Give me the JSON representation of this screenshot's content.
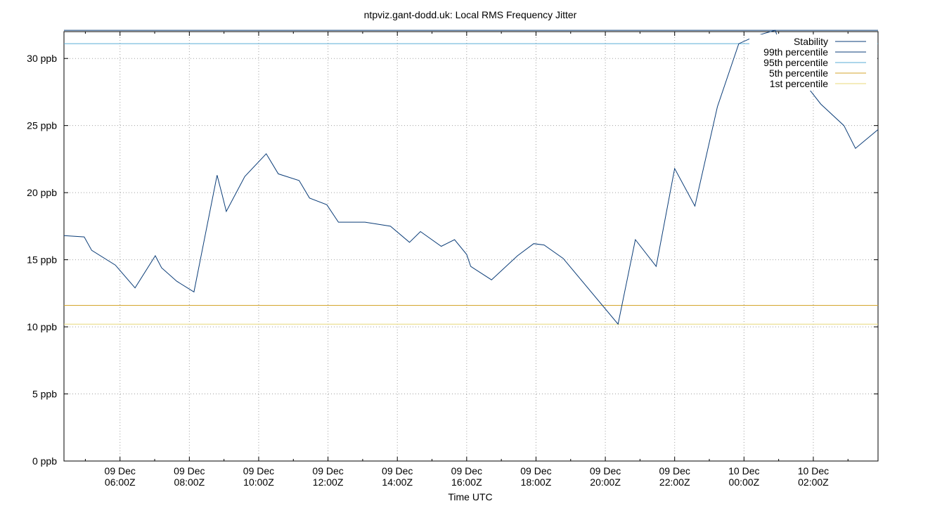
{
  "chart_data": {
    "type": "line",
    "title": "ntpviz.gant-dodd.uk: Local RMS Frequency Jitter",
    "xlabel": "Time UTC",
    "ylabel": "",
    "ylim": [
      0,
      32
    ],
    "xlim": [
      "2024-12-09T04:23Z",
      "2024-12-10T03:52Z"
    ],
    "grid": true,
    "legend_position": "top-right",
    "yticks": [
      {
        "value": 0,
        "label": "0 ppb"
      },
      {
        "value": 5,
        "label": "5 ppb"
      },
      {
        "value": 10,
        "label": "10 ppb"
      },
      {
        "value": 15,
        "label": "15 ppb"
      },
      {
        "value": 20,
        "label": "20 ppb"
      },
      {
        "value": 25,
        "label": "25 ppb"
      },
      {
        "value": 30,
        "label": "30 ppb"
      }
    ],
    "xticks": [
      {
        "value": "2024-12-09T06:00Z",
        "line1": "09 Dec",
        "line2": "06:00Z"
      },
      {
        "value": "2024-12-09T08:00Z",
        "line1": "09 Dec",
        "line2": "08:00Z"
      },
      {
        "value": "2024-12-09T10:00Z",
        "line1": "09 Dec",
        "line2": "10:00Z"
      },
      {
        "value": "2024-12-09T12:00Z",
        "line1": "09 Dec",
        "line2": "12:00Z"
      },
      {
        "value": "2024-12-09T14:00Z",
        "line1": "09 Dec",
        "line2": "14:00Z"
      },
      {
        "value": "2024-12-09T16:00Z",
        "line1": "09 Dec",
        "line2": "16:00Z"
      },
      {
        "value": "2024-12-09T18:00Z",
        "line1": "09 Dec",
        "line2": "18:00Z"
      },
      {
        "value": "2024-12-09T20:00Z",
        "line1": "09 Dec",
        "line2": "20:00Z"
      },
      {
        "value": "2024-12-09T22:00Z",
        "line1": "09 Dec",
        "line2": "22:00Z"
      },
      {
        "value": "2024-12-10T00:00Z",
        "line1": "10 Dec",
        "line2": "00:00Z"
      },
      {
        "value": "2024-12-10T02:00Z",
        "line1": "10 Dec",
        "line2": "02:00Z"
      }
    ],
    "minor_xticks": [
      "2024-12-09T05:00Z",
      "2024-12-09T07:00Z",
      "2024-12-09T09:00Z",
      "2024-12-09T11:00Z",
      "2024-12-09T13:00Z",
      "2024-12-09T15:00Z",
      "2024-12-09T17:00Z",
      "2024-12-09T19:00Z",
      "2024-12-09T21:00Z",
      "2024-12-09T23:00Z",
      "2024-12-10T01:00Z",
      "2024-12-10T03:00Z"
    ],
    "series": [
      {
        "name": "Stability",
        "color": "#0b3d78",
        "x": [
          "2024-12-09T04:23Z",
          "2024-12-09T04:58Z",
          "2024-12-09T05:11Z",
          "2024-12-09T05:52Z",
          "2024-12-09T06:26Z",
          "2024-12-09T07:01Z",
          "2024-12-09T07:12Z",
          "2024-12-09T07:38Z",
          "2024-12-09T08:08Z",
          "2024-12-09T08:48Z",
          "2024-12-09T08:57Z",
          "2024-12-09T09:04Z",
          "2024-12-09T09:36Z",
          "2024-12-09T10:13Z",
          "2024-12-09T10:34Z",
          "2024-12-09T11:10Z",
          "2024-12-09T11:28Z",
          "2024-12-09T11:58Z",
          "2024-12-09T12:18Z",
          "2024-12-09T13:04Z",
          "2024-12-09T13:48Z",
          "2024-12-09T14:21Z",
          "2024-12-09T14:40Z",
          "2024-12-09T15:16Z",
          "2024-12-09T15:39Z",
          "2024-12-09T16:00Z",
          "2024-12-09T16:07Z",
          "2024-12-09T16:43Z",
          "2024-12-09T17:28Z",
          "2024-12-09T17:56Z",
          "2024-12-09T18:14Z",
          "2024-12-09T18:47Z",
          "2024-12-09T20:22Z",
          "2024-12-09T20:52Z",
          "2024-12-09T21:28Z",
          "2024-12-09T22:00Z",
          "2024-12-09T22:35Z",
          "2024-12-09T23:14Z",
          "2024-12-09T23:51Z",
          "2024-12-10T00:22Z",
          "2024-12-10T00:54Z",
          "2024-12-10T01:13Z",
          "2024-12-10T01:42Z",
          "2024-12-10T02:13Z",
          "2024-12-10T02:53Z",
          "2024-12-10T03:13Z",
          "2024-12-10T03:52Z"
        ],
        "values": [
          16.8,
          16.7,
          15.7,
          14.6,
          12.9,
          15.3,
          14.4,
          13.4,
          12.6,
          21.3,
          19.8,
          18.6,
          21.2,
          22.9,
          21.4,
          20.9,
          19.6,
          19.1,
          17.8,
          17.8,
          17.5,
          16.3,
          17.1,
          16.0,
          16.5,
          15.4,
          14.5,
          13.5,
          15.3,
          16.2,
          16.1,
          15.1,
          10.2,
          16.5,
          14.5,
          21.8,
          19.0,
          26.4,
          31.1,
          31.7,
          32.1,
          29.8,
          28.3,
          26.6,
          25.0,
          23.3,
          24.7
        ]
      },
      {
        "name": "99th percentile",
        "color": "#0b3d78",
        "values": [
          32.1
        ]
      },
      {
        "name": "95th percentile",
        "color": "#5aaed6",
        "values": [
          31.1
        ]
      },
      {
        "name": "5th percentile",
        "color": "#d4a62c",
        "values": [
          11.6
        ]
      },
      {
        "name": "1st percentile",
        "color": "#e8d87a",
        "values": [
          10.2
        ]
      }
    ]
  }
}
